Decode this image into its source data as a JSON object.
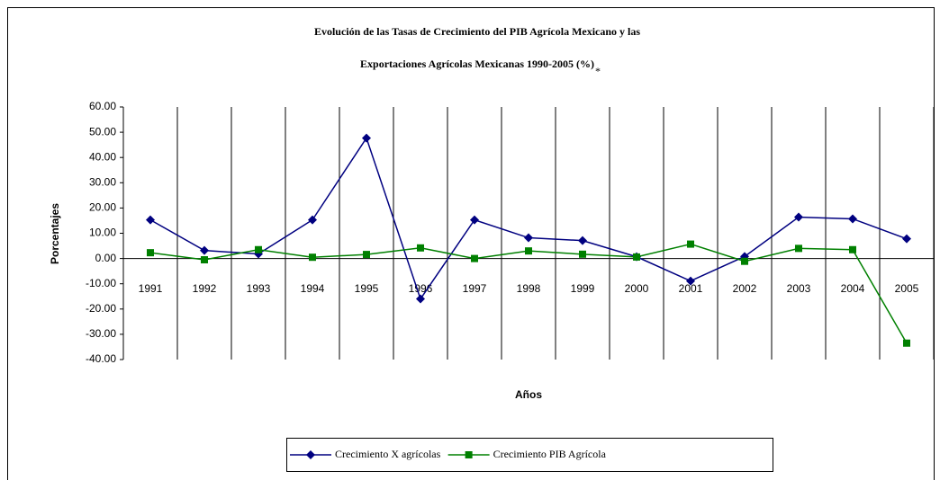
{
  "chart_data": {
    "type": "line",
    "title": [
      "Evolución de las Tasas de Crecimiento del PIB Agrícola Mexicano y las",
      "Exportaciones Agrícolas Mexicanas 1990-2005 (%)"
    ],
    "title_mark": "*",
    "x_label": "Años",
    "y_label": "Porcentajes",
    "categories": [
      "1991",
      "1992",
      "1993",
      "1994",
      "1995",
      "1996",
      "1997",
      "1998",
      "1999",
      "2000",
      "2001",
      "2002",
      "2003",
      "2004",
      "2005"
    ],
    "series": [
      {
        "name": "Crecimiento X agrícolas",
        "color": "#000080",
        "marker": "diamond",
        "values": [
          15.3,
          3.2,
          1.8,
          15.3,
          47.7,
          -16.0,
          15.3,
          8.2,
          7.1,
          0.7,
          -8.9,
          0.8,
          16.4,
          15.7,
          7.8
        ]
      },
      {
        "name": "Crecimiento PIB Agrícola",
        "color": "#008000",
        "marker": "square",
        "values": [
          2.3,
          -0.5,
          3.5,
          0.5,
          1.6,
          4.2,
          0.0,
          3.0,
          1.7,
          0.6,
          5.7,
          -1.1,
          4.0,
          3.5,
          -33.5
        ]
      }
    ],
    "ylim": [
      -40,
      60
    ],
    "yticks": [
      {
        "value": -40,
        "label": "-40.00"
      },
      {
        "value": -30,
        "label": "-30.00"
      },
      {
        "value": -20,
        "label": "-20.00"
      },
      {
        "value": -10,
        "label": "-10.00"
      },
      {
        "value": 0,
        "label": "0.00"
      },
      {
        "value": 10,
        "label": "10.00"
      },
      {
        "value": 20,
        "label": "20.00"
      },
      {
        "value": 30,
        "label": "30.00"
      },
      {
        "value": 40,
        "label": "40.00"
      },
      {
        "value": 50,
        "label": "50.00"
      },
      {
        "value": 60,
        "label": "60.00"
      }
    ],
    "legend": "bottom"
  }
}
